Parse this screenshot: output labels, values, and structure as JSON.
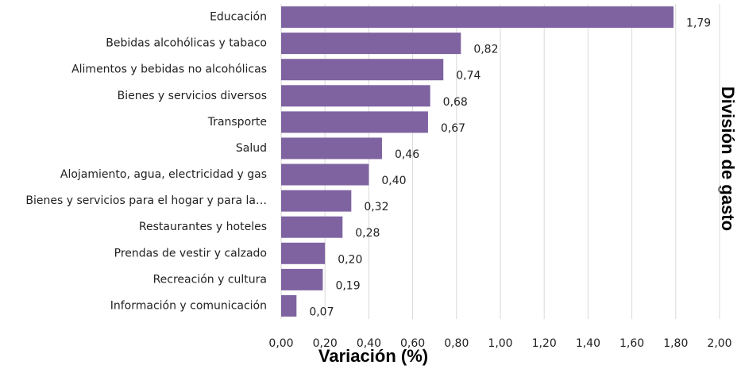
{
  "chart_data": {
    "type": "barh",
    "x_label": "Variación (%)",
    "y_label": "División de gasto",
    "color": "#7f63a1",
    "grid": true,
    "categories": [
      "Educación",
      "Bebidas alcohólicas y tabaco",
      "Alimentos y bebidas no alcohólicas",
      "Bienes y servicios diversos",
      "Transporte",
      "Salud",
      "Alojamiento, agua, electricidad y gas",
      "Bienes y servicios para el hogar y para la…",
      "Restaurantes y hoteles",
      "Prendas de vestir y calzado",
      "Recreación y cultura",
      "Información y comunicación"
    ],
    "values": [
      1.79,
      0.82,
      0.74,
      0.68,
      0.67,
      0.46,
      0.4,
      0.32,
      0.28,
      0.2,
      0.19,
      0.07
    ],
    "value_labels": [
      "1,79",
      "0,82",
      "0,74",
      "0,68",
      "0,67",
      "0,46",
      "0,40",
      "0,32",
      "0,28",
      "0,20",
      "0,19",
      "0,07"
    ],
    "xlim": [
      0,
      2
    ],
    "xticks": [
      {
        "value": 0,
        "label": "0,00"
      },
      {
        "value": 0.2,
        "label": "0,20"
      },
      {
        "value": 0.4,
        "label": "0,40"
      },
      {
        "value": 0.6,
        "label": "0,60"
      },
      {
        "value": 0.8,
        "label": "0,80"
      },
      {
        "value": 1.0,
        "label": "1,00"
      },
      {
        "value": 1.2,
        "label": "1,20"
      },
      {
        "value": 1.4,
        "label": "1,40"
      },
      {
        "value": 1.6,
        "label": "1,60"
      },
      {
        "value": 1.8,
        "label": "1,80"
      },
      {
        "value": 2.0,
        "label": "2,00"
      }
    ]
  }
}
